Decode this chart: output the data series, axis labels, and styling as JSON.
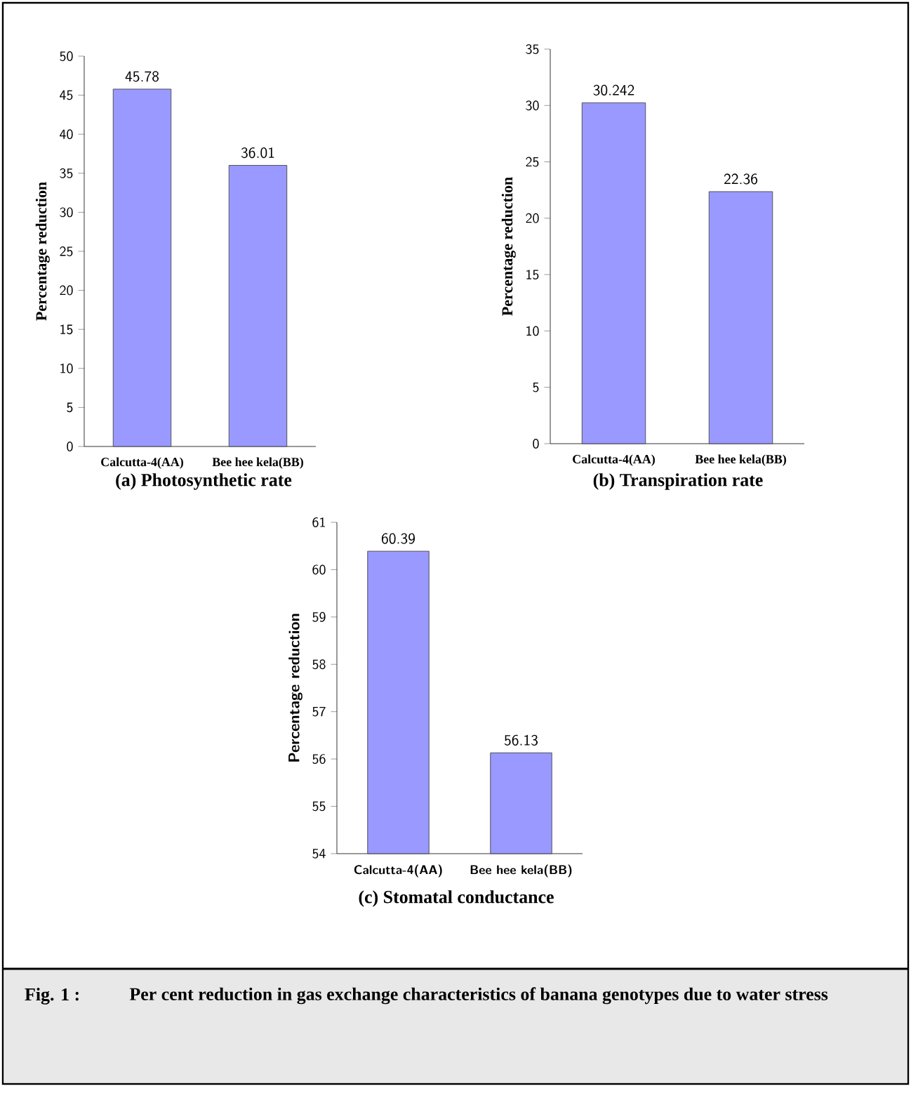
{
  "chart_data": [
    {
      "type": "bar",
      "title": "(a) Photosynthetic rate",
      "ylabel": "Percentage reduction",
      "categories": [
        "Calcutta-4(AA)",
        "Bee hee kela(BB)"
      ],
      "values": [
        45.78,
        36.01
      ],
      "value_labels": [
        "45.78",
        "36.01"
      ],
      "color": "#9999ff",
      "ylim": [
        0,
        50
      ],
      "yticks": [
        0,
        5,
        10,
        15,
        20,
        25,
        30,
        35,
        40,
        45,
        50
      ]
    },
    {
      "type": "bar",
      "title": "(b) Transpiration rate",
      "ylabel": "Percentage reduction",
      "categories": [
        "Calcutta-4(AA)",
        "Bee hee kela(BB)"
      ],
      "values": [
        30.242,
        22.36
      ],
      "value_labels": [
        "30.242",
        "22.36"
      ],
      "color": "#9999ff",
      "ylim": [
        0,
        35
      ],
      "yticks": [
        0,
        5,
        10,
        15,
        20,
        25,
        30,
        35
      ]
    },
    {
      "type": "bar",
      "title": "(c) Stomatal conductance",
      "ylabel": "Percentage reduction",
      "categories": [
        "Calcutta-4(AA)",
        "Bee hee kela(BB)"
      ],
      "values": [
        60.39,
        56.13
      ],
      "value_labels": [
        "60.39",
        "56.13"
      ],
      "color": "#9999ff",
      "ylim": [
        54,
        61
      ],
      "yticks": [
        54,
        55,
        56,
        57,
        58,
        59,
        60,
        61
      ],
      "annotations": [
        "Fig. 1 :",
        "Per cent reduction in gas exchange characteristics of banana genotypes due to water stress"
      ]
    }
  ]
}
